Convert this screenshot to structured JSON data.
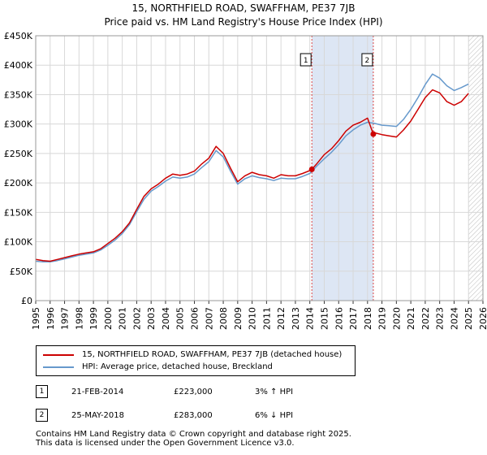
{
  "title_line1": "15, NORTHFIELD ROAD, SWAFFHAM, PE37 7JB",
  "title_line2": "Price paid vs. HM Land Registry's House Price Index (HPI)",
  "legend": {
    "property_label": "15, NORTHFIELD ROAD, SWAFFHAM, PE37 7JB (detached house)",
    "hpi_label": "HPI: Average price, detached house, Breckland"
  },
  "colors": {
    "property": "#cc0000",
    "hpi": "#6699cc",
    "marker_line": "#dd4444",
    "shade": "#dde6f4",
    "hatch": "#bbbbbb"
  },
  "transactions": [
    {
      "num": "1",
      "date": "21-FEB-2014",
      "price": "£223,000",
      "hpi": "3% ↑ HPI"
    },
    {
      "num": "2",
      "date": "25-MAY-2018",
      "price": "£283,000",
      "hpi": "6% ↓ HPI"
    }
  ],
  "footer_line1": "Contains HM Land Registry data © Crown copyright and database right 2025.",
  "footer_line2": "This data is licensed under the Open Government Licence v3.0.",
  "chart_data": {
    "type": "line",
    "title": "15, NORTHFIELD ROAD, SWAFFHAM, PE37 7JB",
    "subtitle": "Price paid vs. HM Land Registry's House Price Index (HPI)",
    "xlim": [
      1995,
      2026
    ],
    "ylim": [
      0,
      450000
    ],
    "x_ticks": [
      "1995",
      "1996",
      "1997",
      "1998",
      "1999",
      "2000",
      "2001",
      "2002",
      "2003",
      "2004",
      "2005",
      "2006",
      "2007",
      "2008",
      "2009",
      "2010",
      "2011",
      "2012",
      "2013",
      "2014",
      "2015",
      "2016",
      "2017",
      "2018",
      "2019",
      "2020",
      "2021",
      "2022",
      "2023",
      "2024",
      "2025",
      "2026"
    ],
    "y_ticks": [
      {
        "v": 0,
        "label": "£0"
      },
      {
        "v": 50000,
        "label": "£50K"
      },
      {
        "v": 100000,
        "label": "£100K"
      },
      {
        "v": 150000,
        "label": "£150K"
      },
      {
        "v": 200000,
        "label": "£200K"
      },
      {
        "v": 250000,
        "label": "£250K"
      },
      {
        "v": 300000,
        "label": "£300K"
      },
      {
        "v": 350000,
        "label": "£350K"
      },
      {
        "v": 400000,
        "label": "£400K"
      },
      {
        "v": 450000,
        "label": "£450K"
      }
    ],
    "grid": true,
    "shaded_span": [
      2014.14,
      2018.4
    ],
    "future_hatch_from": 2025.0,
    "markers": [
      {
        "label": "1",
        "x": 2014.14,
        "y": 223000
      },
      {
        "label": "2",
        "x": 2018.4,
        "y": 283000
      }
    ],
    "series": [
      {
        "name": "15, NORTHFIELD ROAD, SWAFFHAM, PE37 7JB (detached house)",
        "x": [
          1995.0,
          1995.5,
          1996.0,
          1996.5,
          1997.0,
          1997.5,
          1998.0,
          1998.5,
          1999.0,
          1999.5,
          2000.0,
          2000.5,
          2001.0,
          2001.5,
          2002.0,
          2002.5,
          2003.0,
          2003.5,
          2004.0,
          2004.5,
          2005.0,
          2005.5,
          2006.0,
          2006.5,
          2007.0,
          2007.5,
          2008.0,
          2008.5,
          2009.0,
          2009.5,
          2010.0,
          2010.5,
          2011.0,
          2011.5,
          2012.0,
          2012.5,
          2013.0,
          2013.5,
          2014.0,
          2014.14,
          2014.5,
          2015.0,
          2015.5,
          2016.0,
          2016.5,
          2017.0,
          2017.5,
          2018.0,
          2018.4,
          2018.5,
          2019.0,
          2019.5,
          2020.0,
          2020.5,
          2021.0,
          2021.5,
          2022.0,
          2022.5,
          2023.0,
          2023.5,
          2024.0,
          2024.5,
          2025.0
        ],
        "values": [
          70000,
          68000,
          67000,
          70000,
          73000,
          76000,
          79000,
          81000,
          83000,
          88000,
          97000,
          106000,
          117000,
          132000,
          155000,
          177000,
          190000,
          198000,
          208000,
          215000,
          213000,
          215000,
          220000,
          232000,
          242000,
          262000,
          250000,
          225000,
          202000,
          212000,
          218000,
          214000,
          212000,
          208000,
          214000,
          212000,
          212000,
          216000,
          221000,
          223000,
          233000,
          248000,
          258000,
          272000,
          288000,
          298000,
          303000,
          310000,
          283000,
          285000,
          282000,
          280000,
          278000,
          290000,
          305000,
          325000,
          345000,
          358000,
          353000,
          338000,
          332000,
          338000,
          352000
        ]
      },
      {
        "name": "HPI: Average price, detached house, Breckland",
        "x": [
          1995.0,
          1995.5,
          1996.0,
          1996.5,
          1997.0,
          1997.5,
          1998.0,
          1998.5,
          1999.0,
          1999.5,
          2000.0,
          2000.5,
          2001.0,
          2001.5,
          2002.0,
          2002.5,
          2003.0,
          2003.5,
          2004.0,
          2004.5,
          2005.0,
          2005.5,
          2006.0,
          2006.5,
          2007.0,
          2007.5,
          2008.0,
          2008.5,
          2009.0,
          2009.5,
          2010.0,
          2010.5,
          2011.0,
          2011.5,
          2012.0,
          2012.5,
          2013.0,
          2013.5,
          2014.0,
          2014.5,
          2015.0,
          2015.5,
          2016.0,
          2016.5,
          2017.0,
          2017.5,
          2018.0,
          2018.5,
          2019.0,
          2019.5,
          2020.0,
          2020.5,
          2021.0,
          2021.5,
          2022.0,
          2022.5,
          2023.0,
          2023.5,
          2024.0,
          2024.5,
          2025.0
        ],
        "values": [
          67000,
          66000,
          66000,
          68000,
          71000,
          74000,
          77000,
          79000,
          81000,
          86000,
          94000,
          103000,
          114000,
          129000,
          151000,
          172000,
          186000,
          194000,
          203000,
          210000,
          208000,
          210000,
          215000,
          226000,
          236000,
          255000,
          244000,
          220000,
          198000,
          207000,
          212000,
          209000,
          207000,
          204000,
          208000,
          207000,
          207000,
          211000,
          216000,
          229000,
          241000,
          252000,
          265000,
          280000,
          290000,
          298000,
          303000,
          301000,
          298000,
          297000,
          296000,
          308000,
          325000,
          345000,
          367000,
          385000,
          378000,
          365000,
          357000,
          362000,
          368000
        ]
      }
    ]
  }
}
